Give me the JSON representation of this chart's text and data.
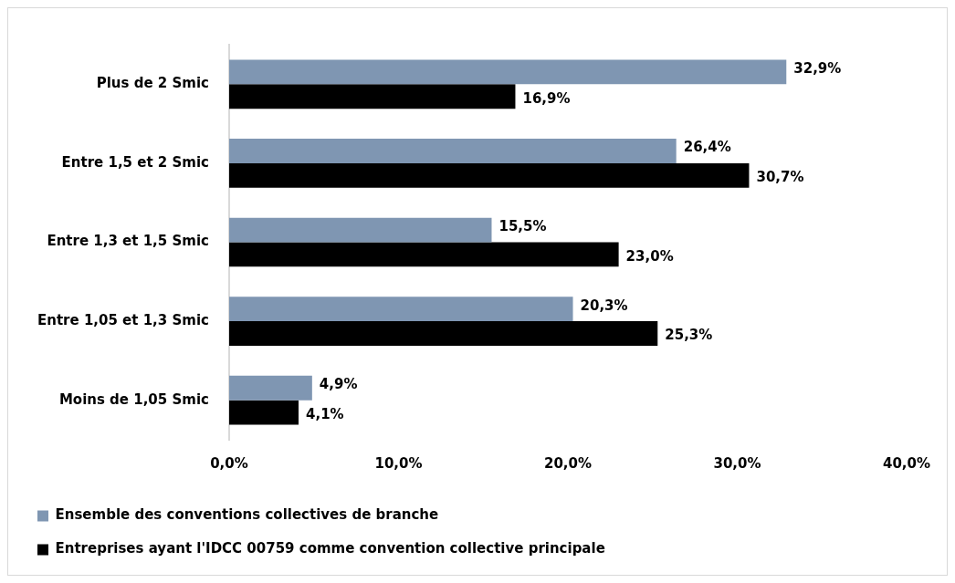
{
  "chart_data": {
    "type": "bar",
    "orientation": "horizontal",
    "categories": [
      "Plus de 2 Smic",
      "Entre 1,5 et 2 Smic",
      "Entre 1,3 et 1,5 Smic",
      "Entre 1,05 et 1,3 Smic",
      "Moins de 1,05 Smic"
    ],
    "series": [
      {
        "name": "Ensemble des conventions collectives de branche",
        "color": "#7f96b2",
        "values": [
          32.9,
          26.4,
          15.5,
          20.3,
          4.9
        ],
        "value_labels": [
          "32,9%",
          "26,4%",
          "15,5%",
          "20,3%",
          "4,9%"
        ]
      },
      {
        "name": "Entreprises ayant l'IDCC 00759 comme convention collective principale",
        "color": "#000000",
        "values": [
          16.9,
          30.7,
          23.0,
          25.3,
          4.1
        ],
        "value_labels": [
          "16,9%",
          "30,7%",
          "23,0%",
          "25,3%",
          "4,1%"
        ]
      }
    ],
    "xlim": [
      0,
      40
    ],
    "xticks": [
      {
        "value": 0,
        "label": "0,0%"
      },
      {
        "value": 10,
        "label": "10,0%"
      },
      {
        "value": 20,
        "label": "20,0%"
      },
      {
        "value": 30,
        "label": "30,0%"
      },
      {
        "value": 40,
        "label": "40,0%"
      }
    ],
    "grid": false,
    "legend": "bottom"
  }
}
